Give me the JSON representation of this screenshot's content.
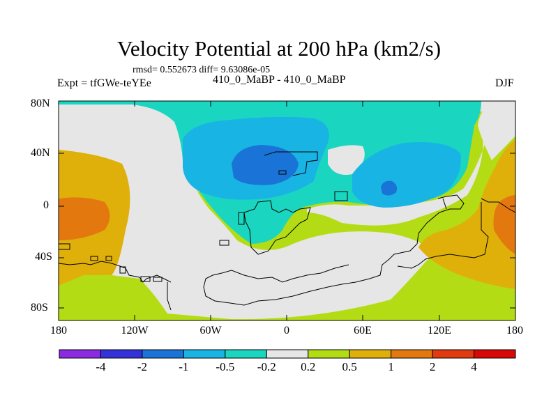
{
  "figure": {
    "title": "Velocity Potential at 200 hPa (km2/s)",
    "stats": "rmsd= 0.552673 diff= 9.63086e-05",
    "experiment": "Expt = tfGWe-teYEe",
    "subtitle": "410_0_MaBP - 410_0_MaBP",
    "season": "DJF"
  },
  "axes": {
    "lat_ticks": [
      "80N",
      "40N",
      "0",
      "40S",
      "80S"
    ],
    "lon_ticks": [
      "180",
      "120W",
      "60W",
      "0",
      "60E",
      "120E",
      "180"
    ]
  },
  "colorbar": {
    "levels": [
      "-4",
      "-2",
      "-1",
      "-0.5",
      "-0.2",
      "0.2",
      "0.5",
      "1",
      "2",
      "4"
    ],
    "colors": [
      "#8a2be2",
      "#3232d8",
      "#1a73d6",
      "#18b4e4",
      "#1ad6c0",
      "#e6e6e6",
      "#b4dc14",
      "#e0b00a",
      "#e2780e",
      "#e03a0e",
      "#d80808"
    ]
  },
  "chart_data": {
    "type": "heatmap",
    "title": "Velocity Potential at 200 hPa (km2/s)",
    "variable": "velocity potential difference",
    "units": "km2/s",
    "level_hPa": 200,
    "lon_range": [
      -180,
      180
    ],
    "lat_range": [
      -90,
      90
    ],
    "contour_levels": [
      -4,
      -2,
      -1,
      -0.5,
      -0.2,
      0.2,
      0.5,
      1,
      2,
      4
    ],
    "fields": [
      {
        "name": "minimum over South America",
        "class_index": 2,
        "lon": -36,
        "lat": 30
      },
      {
        "name": "minimum over Indian Ocean",
        "class_index": 2,
        "lon": 80,
        "lat": 12
      },
      {
        "name": "maximum over central Pacific",
        "class_index": 8,
        "lon": -165,
        "lat": -10
      },
      {
        "name": "maximum over western Pacific",
        "class_index": 8,
        "lon": 175,
        "lat": -10
      }
    ]
  }
}
